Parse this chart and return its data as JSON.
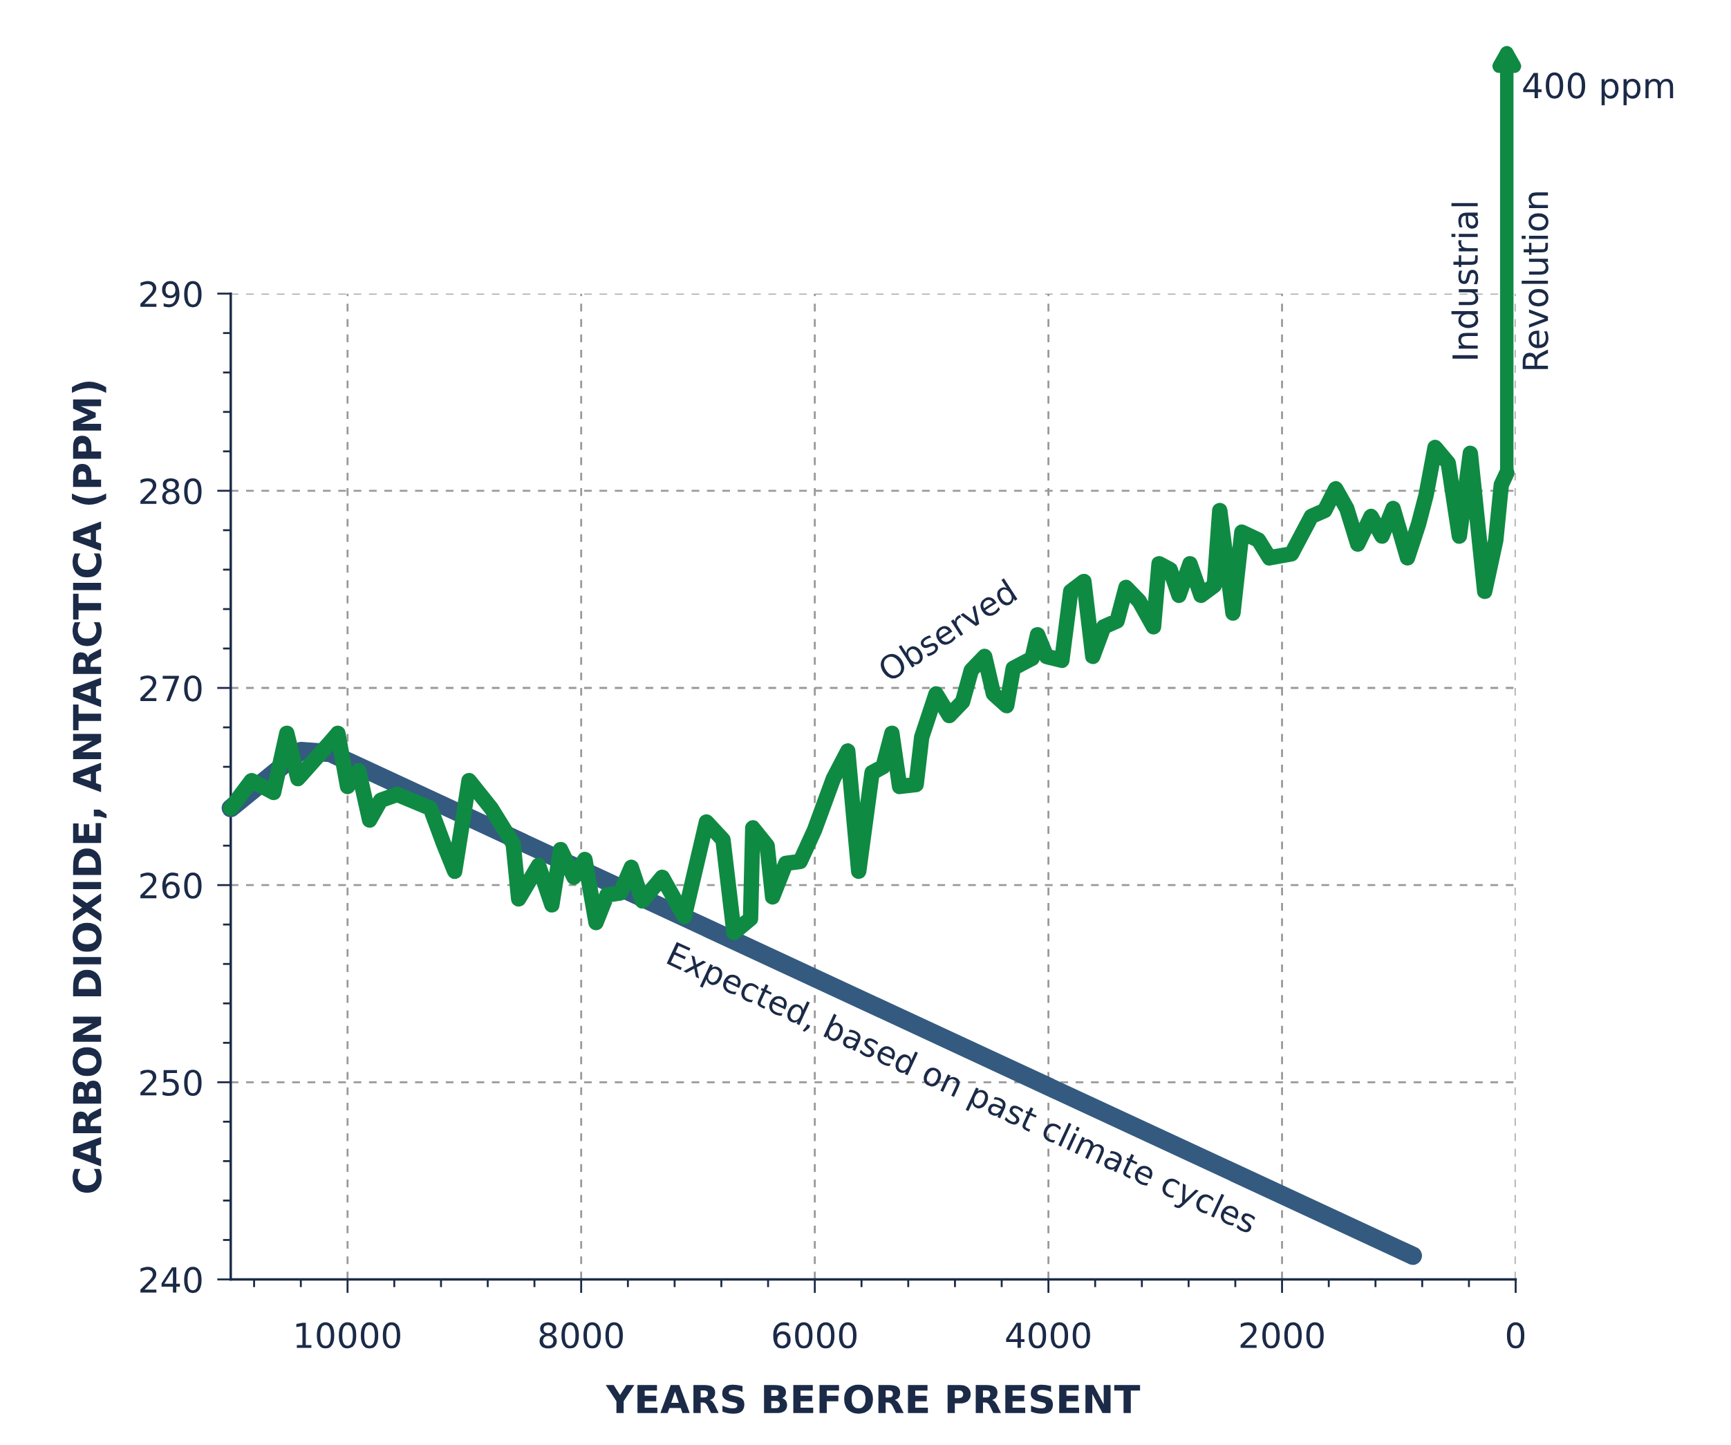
{
  "chart_data": {
    "type": "line",
    "xlabel": "YEARS BEFORE PRESENT",
    "ylabel": "CARBON DIOXIDE, ANTARCTICA (PPM)",
    "xlim": [
      11000,
      0
    ],
    "xticks": [
      10000,
      8000,
      6000,
      4000,
      2000,
      0
    ],
    "ylim": [
      240,
      290
    ],
    "yticks": [
      240,
      250,
      260,
      270,
      280,
      290
    ],
    "grid": true,
    "line_style": "solid",
    "annotations": [
      "400 ppm",
      "Industrial\nRevolution"
    ],
    "series": [
      {
        "name": "Observed",
        "color": "#0f8a43",
        "x": [
          11000,
          10822,
          10633,
          10520,
          10425,
          10140,
          10083,
          10000,
          9905,
          9811,
          9716,
          9575,
          9291,
          9178,
          9083,
          8960,
          8771,
          8582,
          8535,
          8365,
          8251,
          8176,
          8062,
          7968,
          7873,
          7779,
          7665,
          7571,
          7476,
          7306,
          7117,
          6928,
          6786,
          6692,
          6550,
          6531,
          6408,
          6361,
          6248,
          6125,
          6002,
          5841,
          5718,
          5624,
          5510,
          5416,
          5340,
          5274,
          5132,
          5085,
          4962,
          4849,
          4735,
          4660,
          4546,
          4471,
          4357,
          4301,
          4140,
          4093,
          4017,
          3885,
          3809,
          3696,
          3620,
          3526,
          3412,
          3336,
          3223,
          3100,
          3053,
          2958,
          2883,
          2788,
          2694,
          2580,
          2533,
          2420,
          2344,
          2202,
          2108,
          1919,
          1749,
          1635,
          1541,
          1446,
          1352,
          1238,
          1144,
          1049,
          926,
          832,
          766,
          690,
          577,
          482,
          388,
          265,
          170,
          123,
          76
        ],
        "values": [
          263.9,
          265.3,
          264.7,
          267.7,
          265.4,
          267.3,
          267.7,
          265.0,
          265.8,
          263.3,
          264.3,
          264.6,
          263.9,
          262.1,
          260.7,
          265.3,
          263.9,
          262.1,
          259.3,
          261.0,
          259.0,
          261.8,
          260.4,
          261.3,
          258.1,
          259.5,
          259.6,
          260.9,
          259.2,
          260.4,
          258.4,
          263.2,
          262.3,
          257.6,
          258.3,
          262.9,
          262.0,
          259.4,
          261.1,
          261.2,
          262.8,
          265.4,
          266.8,
          260.7,
          265.7,
          266.0,
          267.7,
          265.0,
          265.1,
          267.5,
          269.7,
          268.6,
          269.3,
          270.9,
          271.6,
          269.7,
          269.1,
          271.0,
          271.5,
          272.7,
          271.6,
          271.4,
          274.9,
          275.4,
          271.6,
          273.1,
          273.4,
          275.1,
          274.4,
          273.1,
          276.3,
          276.0,
          274.7,
          276.3,
          274.7,
          275.2,
          279.0,
          273.8,
          277.9,
          277.5,
          276.6,
          276.8,
          278.7,
          279.0,
          280.1,
          279.1,
          277.3,
          278.7,
          277.7,
          279.1,
          276.6,
          278.3,
          279.8,
          282.2,
          281.4,
          277.7,
          281.9,
          274.9,
          277.5,
          280.3,
          280.9
        ]
      },
      {
        "name": "Expected, based on past climate cycles",
        "color": "#345a80",
        "x": [
          11000,
          10400,
          10150,
          880
        ],
        "values": [
          263.9,
          266.8,
          266.7,
          241.2
        ]
      }
    ]
  }
}
